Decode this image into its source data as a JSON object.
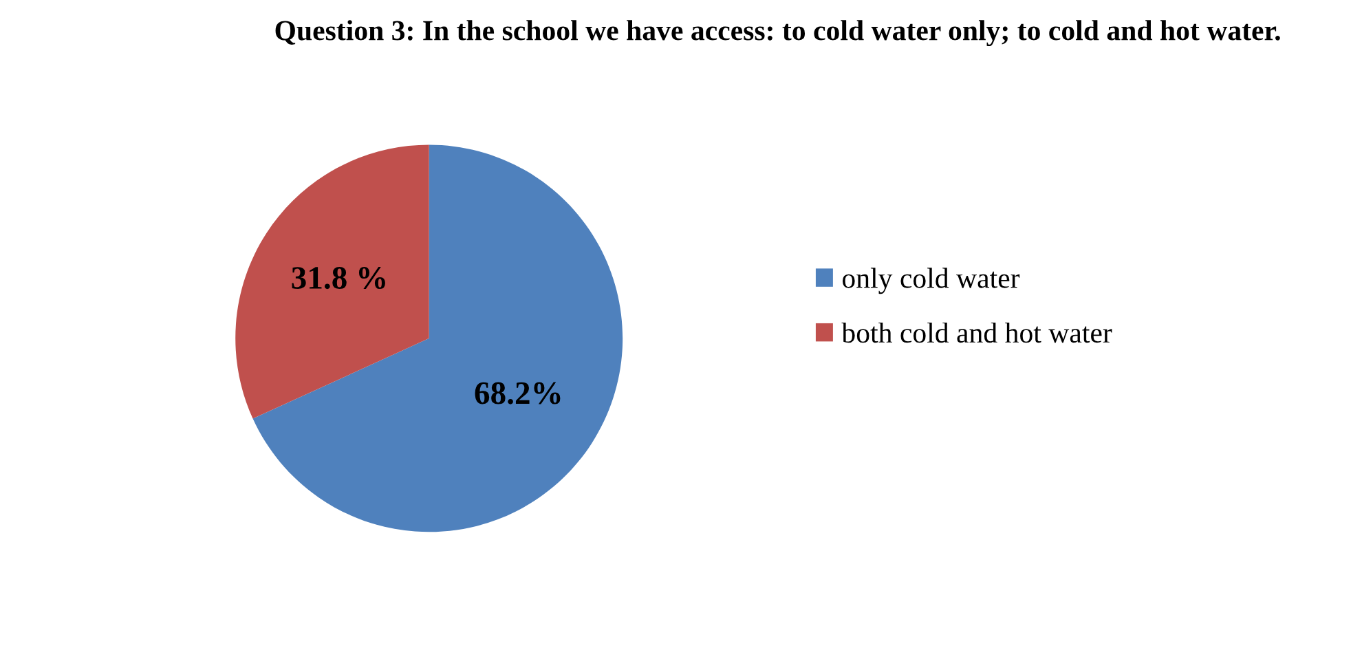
{
  "chart_data": {
    "type": "pie",
    "title": "Question 3: In the school we have access: to cold water only; to cold and hot water.",
    "categories": [
      "only cold water",
      "both cold and hot water"
    ],
    "values": [
      68.2,
      31.8
    ],
    "value_labels": [
      "68.2%",
      "31.8 %"
    ],
    "colors": [
      "#4f81bd",
      "#c0504d"
    ],
    "legend": "right"
  }
}
